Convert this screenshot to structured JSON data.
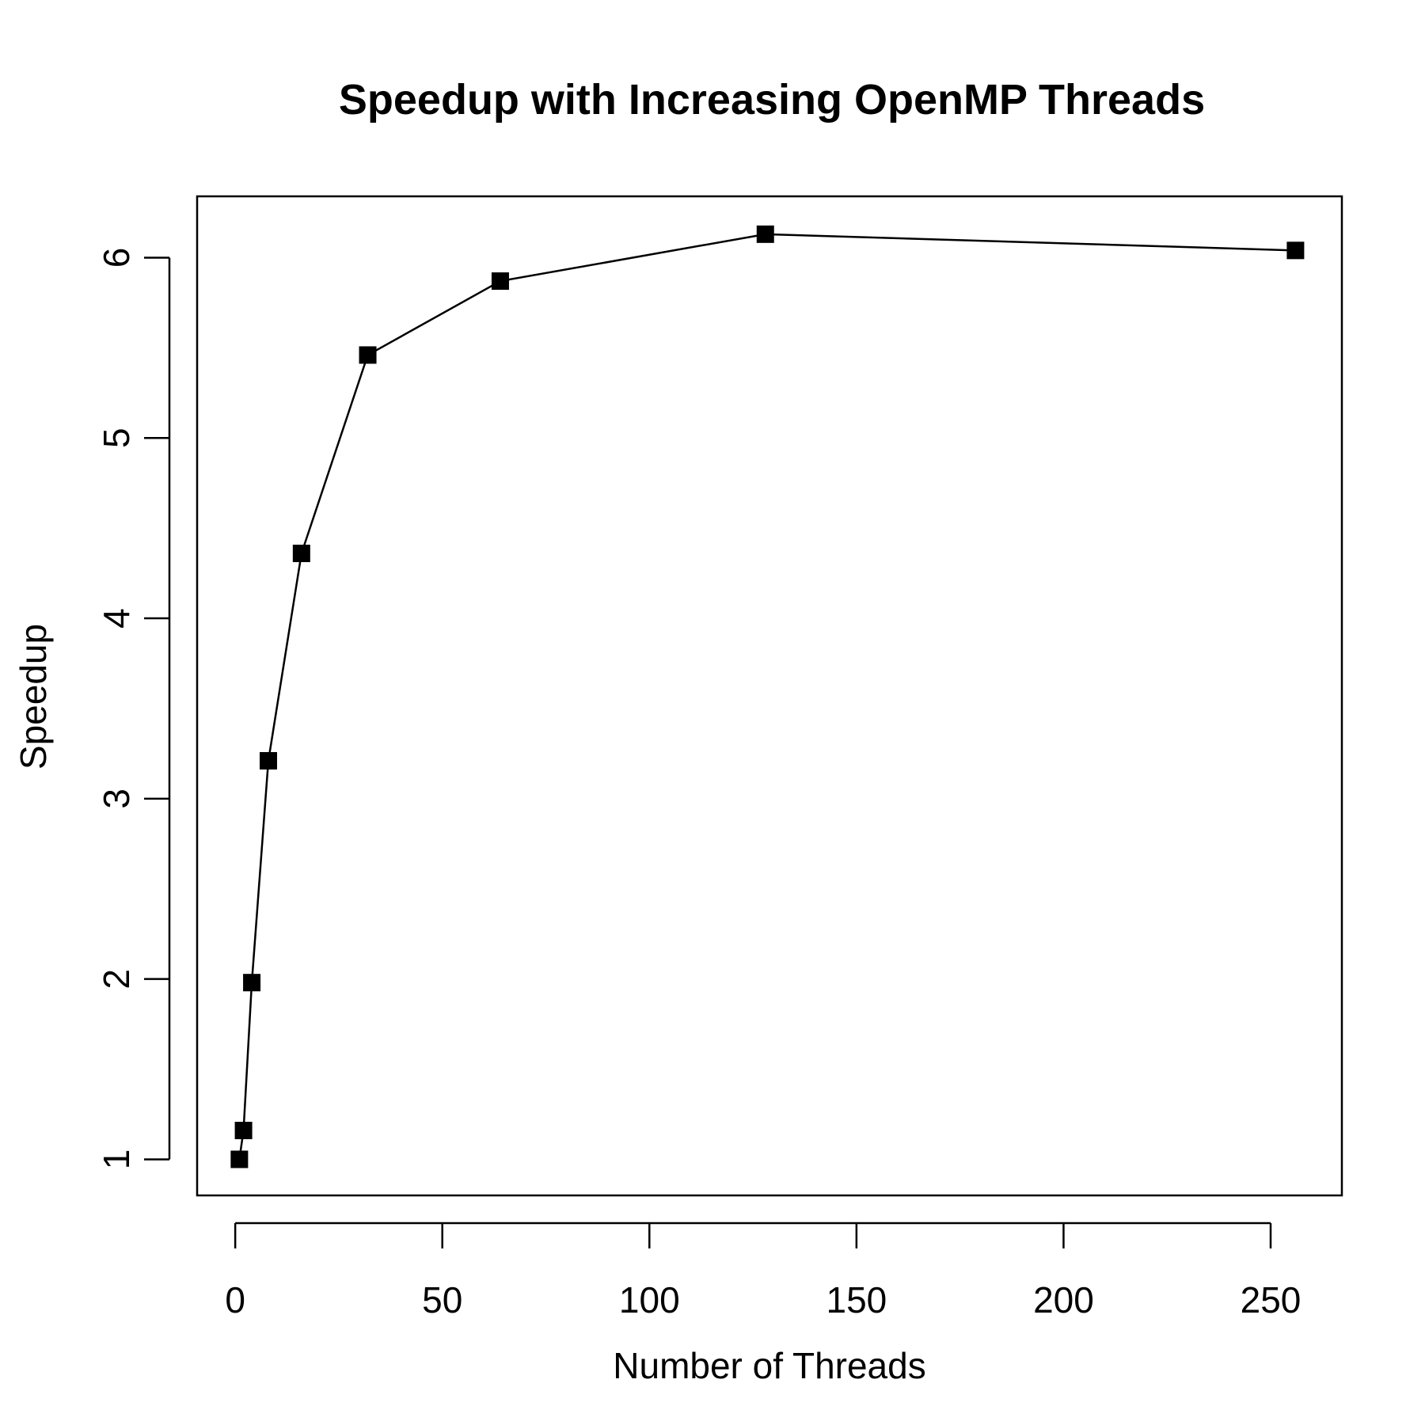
{
  "chart_data": {
    "type": "line",
    "title": "Speedup with Increasing OpenMP Threads",
    "xlabel": "Number of Threads",
    "ylabel": "Speedup",
    "x": [
      1,
      2,
      4,
      8,
      16,
      32,
      64,
      128,
      256
    ],
    "series": [
      {
        "values": [
          1.0,
          1.16,
          1.98,
          3.21,
          4.36,
          5.46,
          5.87,
          6.13,
          6.04
        ]
      }
    ],
    "xlim": [
      -9.2,
      267.2
    ],
    "ylim": [
      0.8,
      6.34
    ],
    "xticks": [
      0,
      50,
      100,
      150,
      200,
      250
    ],
    "yticks": [
      1,
      2,
      3,
      4,
      5,
      6
    ],
    "marker": "filled-square",
    "grid": false,
    "legend": "none",
    "color": "#000000"
  }
}
